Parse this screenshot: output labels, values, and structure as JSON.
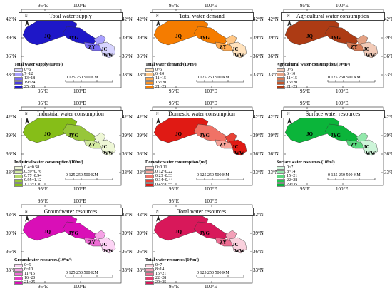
{
  "axes": {
    "lon": [
      "95°E",
      "100°E"
    ],
    "lat": [
      "42°N",
      "39°N",
      "36°N",
      "33°N"
    ],
    "north": "N"
  },
  "places": [
    "JQ",
    "JYG",
    "ZY",
    "JC",
    "WW"
  ],
  "scale": "0  125 250     500 KM",
  "panels": [
    {
      "title": "Total water supply",
      "legend_title": "Total water supply/(10⁸m³)",
      "classes": [
        "0~6",
        "7~12",
        "13~18",
        "19~24",
        "25~30"
      ],
      "colors": [
        "#d7d4ff",
        "#a9a0ff",
        "#7a6df2",
        "#4a3ce0",
        "#1e17c8"
      ]
    },
    {
      "title": "Total water demand",
      "legend_title": "Total water demand/(10⁸m³)",
      "classes": [
        "0~5",
        "6~10",
        "11~15",
        "16~20",
        "21~25"
      ],
      "colors": [
        "#ffe2bd",
        "#ffc786",
        "#ffab52",
        "#fb8f22",
        "#f57c00"
      ]
    },
    {
      "title": "Agricultural water consumption",
      "legend_title": "Agricultural water consumption/(10⁸m³)",
      "classes": [
        "0~5",
        "6~10",
        "11~15",
        "16~20",
        "21~25"
      ],
      "colors": [
        "#f2cbb8",
        "#e4a284",
        "#d67a55",
        "#c2552c",
        "#ad3b14"
      ]
    },
    {
      "title": "Industrial water consumption",
      "legend_title": "Industrial water consumption/(10⁸m³)",
      "classes": [
        "0.4~0.58",
        "0.59~0.76",
        "0.77~0.94",
        "0.95~1.12",
        "1.13~1.30"
      ],
      "colors": [
        "#eef7d6",
        "#d4eaa2",
        "#b6d96c",
        "#97c63a",
        "#86be18"
      ]
    },
    {
      "title": "Domestic water consumption",
      "legend_title": "Domestic water consumption/(m³)",
      "classes": [
        "0~0.11",
        "0.12~0.22",
        "0.23~0.33",
        "0.34~0.44",
        "0.45~0.55"
      ],
      "colors": [
        "#fcd5d0",
        "#f7a59b",
        "#f07266",
        "#e84135",
        "#e01a14"
      ]
    },
    {
      "title": "Surface water resources",
      "legend_title": "Surface water resources/(10⁸m³)",
      "classes": [
        "0~7",
        "8~14",
        "15~21",
        "22~28",
        "29~35"
      ],
      "colors": [
        "#cdf5d9",
        "#93e8ac",
        "#5bd87e",
        "#26c552",
        "#0bb53a"
      ]
    },
    {
      "title": "Groundwater resources",
      "legend_title": "Groundwater resources/(10⁸m³)",
      "classes": [
        "0~5",
        "6~10",
        "11~15",
        "16~20",
        "21~25"
      ],
      "colors": [
        "#fcd3f4",
        "#f6a2e6",
        "#ee6cd5",
        "#e33ac5",
        "#d90fb7"
      ]
    },
    {
      "title": "Total water resources",
      "legend_title": "Total water resources/(10⁸m³)",
      "classes": [
        "0~7",
        "8~14",
        "15~21",
        "22~28",
        "29~35"
      ],
      "colors": [
        "#fad1dd",
        "#f3a0b8",
        "#ec6d92",
        "#e13d70",
        "#d8185a"
      ]
    }
  ]
}
